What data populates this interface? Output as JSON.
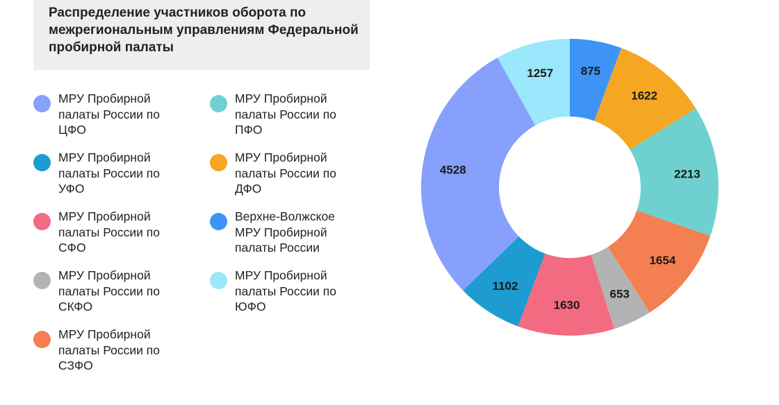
{
  "chart_data": {
    "type": "pie",
    "title": "Распределение участников оборота по межрегиональным управлениям Федеральной пробирной палаты",
    "slices": [
      {
        "name": "Верхне-Волжское МРУ Пробирной палаты России",
        "value": 875,
        "color": "#3d94f6"
      },
      {
        "name": "МРУ Пробирной палаты России по ДФО",
        "value": 1622,
        "color": "#f5a623"
      },
      {
        "name": "МРУ Пробирной палаты России по ПФО",
        "value": 2213,
        "color": "#6fd1cf"
      },
      {
        "name": "МРУ Пробирной палаты России по СЗФО",
        "value": 1654,
        "color": "#f47f52"
      },
      {
        "name": "МРУ Пробирной палаты России по СКФО",
        "value": 653,
        "color": "#b3b3b3"
      },
      {
        "name": "МРУ Пробирной палаты России по СФО",
        "value": 1630,
        "color": "#f36b80"
      },
      {
        "name": "МРУ Пробирной палаты России по УФО",
        "value": 1102,
        "color": "#1e9bd1"
      },
      {
        "name": "МРУ Пробирной палаты России по ЦФО",
        "value": 4528,
        "color": "#87a0fb"
      },
      {
        "name": "МРУ Пробирной палаты России по ЮФО",
        "value": 1257,
        "color": "#9be7fb"
      }
    ],
    "start_angle_deg": 0,
    "direction": "clockwise",
    "donut": true
  },
  "legend": [
    {
      "text": "МРУ Пробирной палаты России по ЦФО",
      "color": "#87a0fb"
    },
    {
      "text": "МРУ Пробирной палаты России по ПФО",
      "color": "#6fd1cf"
    },
    {
      "text": "МРУ Пробирной палаты России по УФО",
      "color": "#1e9bd1"
    },
    {
      "text": "МРУ Пробирной палаты России по ДФО",
      "color": "#f5a623"
    },
    {
      "text": "МРУ Пробирной палаты России по СФО",
      "color": "#f36b80"
    },
    {
      "text": "Верхне-Волжское МРУ Пробирной палаты России",
      "color": "#3d94f6"
    },
    {
      "text": "МРУ Пробирной палаты России по СКФО",
      "color": "#b3b3b3"
    },
    {
      "text": "МРУ Пробирной палаты России по ЮФО",
      "color": "#9be7fb"
    },
    {
      "text": "МРУ Пробирной палаты России по СЗФО",
      "color": "#f47f52"
    }
  ]
}
